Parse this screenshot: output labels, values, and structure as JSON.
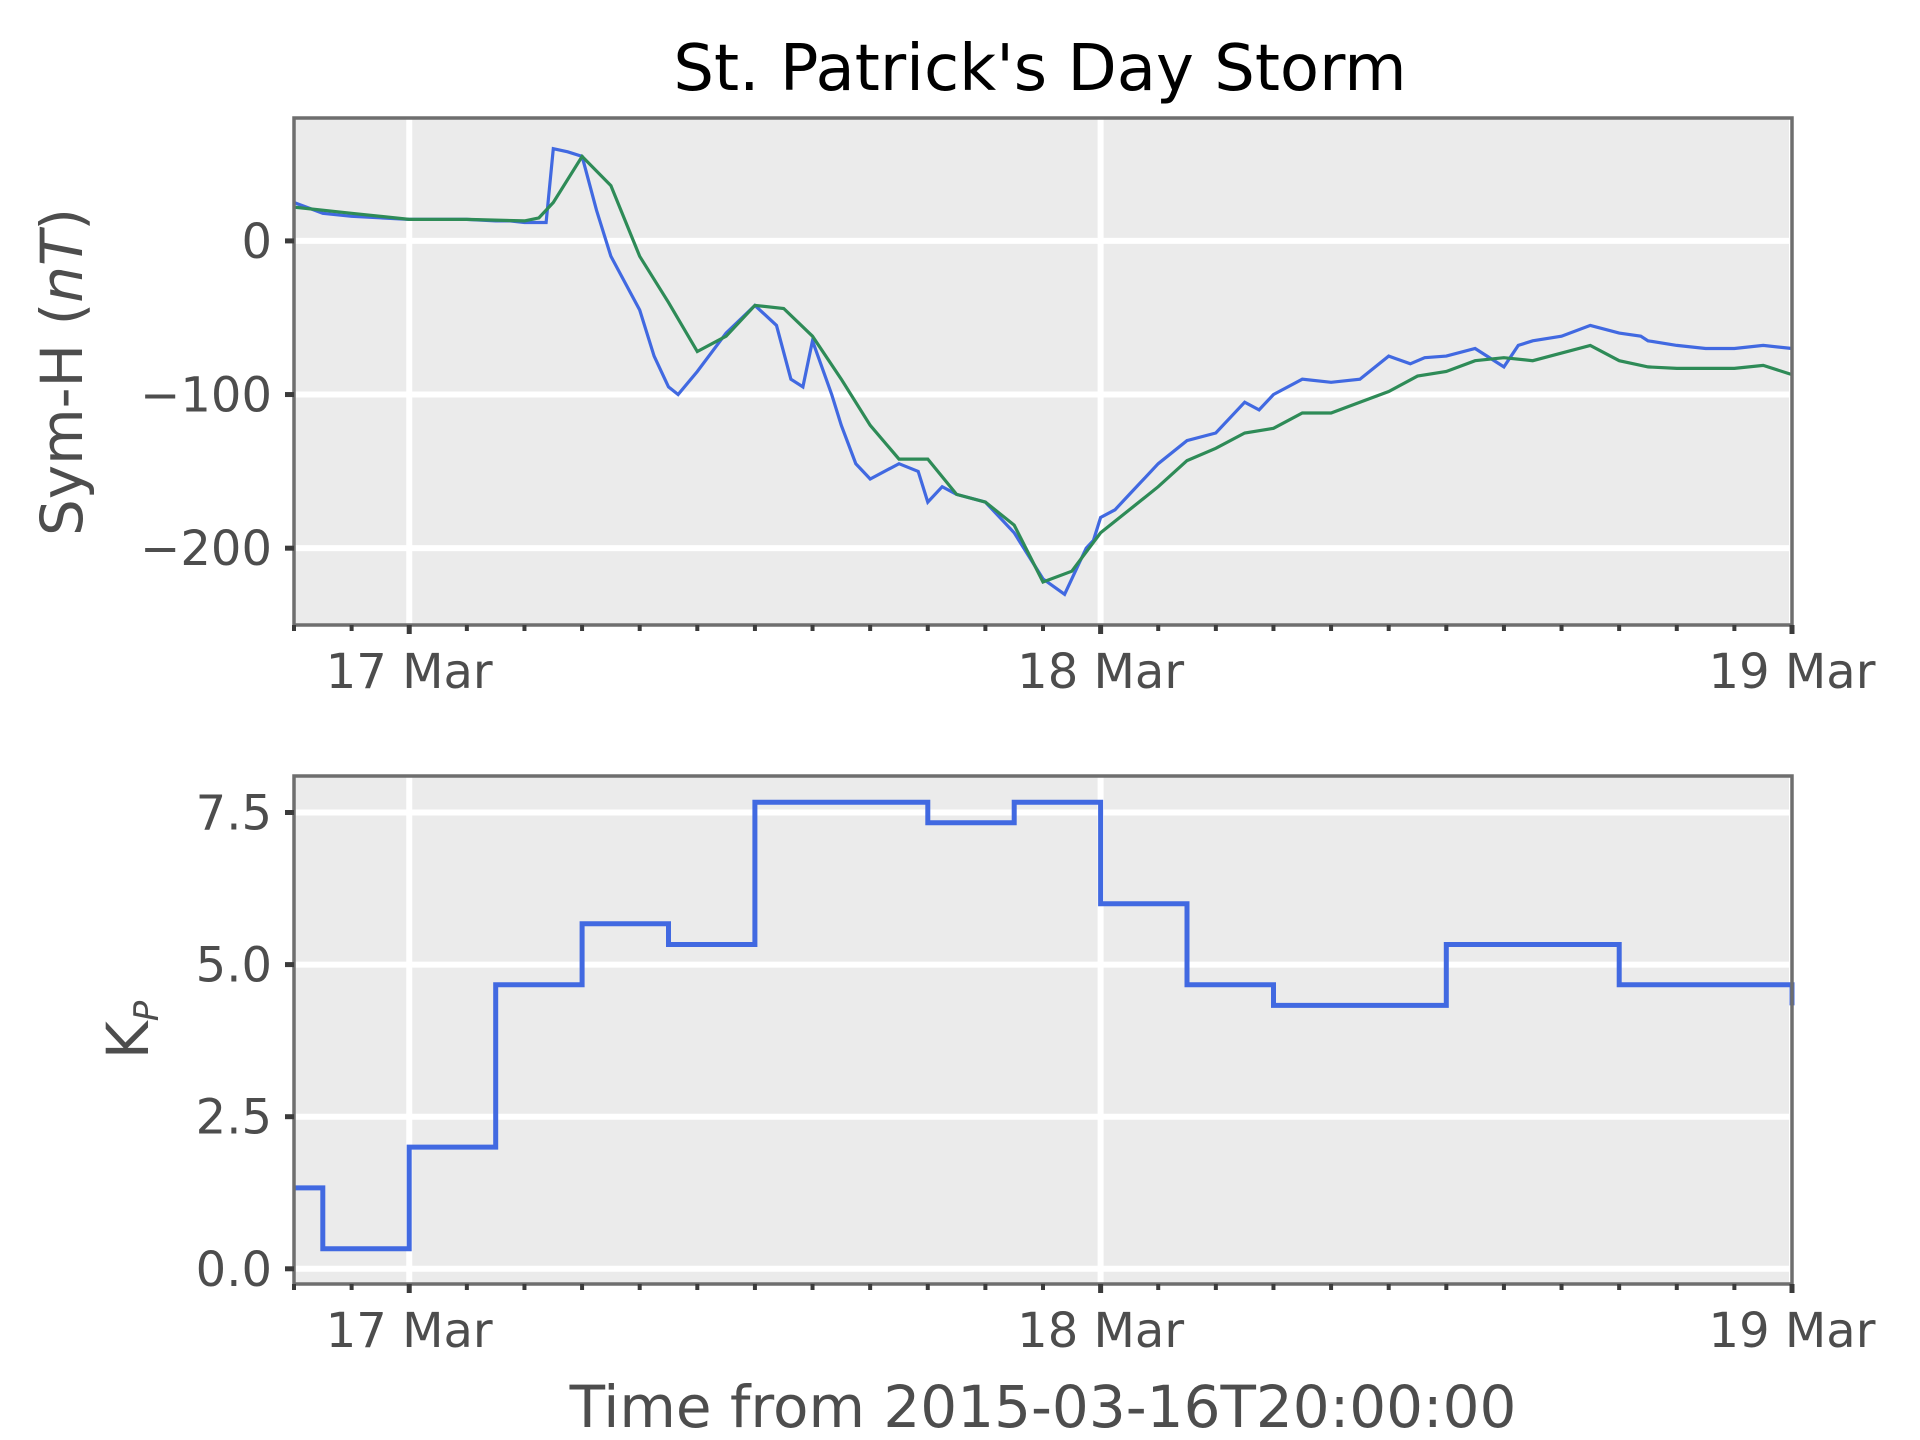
{
  "title": "St. Patrick's Day Storm",
  "xlabel": "Time from 2015-03-16T20:00:00",
  "colors": {
    "background": "#ebebeb",
    "symh": "#4169e1",
    "symh_smooth": "#2e8b57",
    "kp": "#4169e1"
  },
  "chart_data": [
    {
      "type": "line",
      "ylabel": "Sym-H (nT)",
      "ylabel_main": "Sym-H (",
      "ylabel_italic": "nT",
      "ylabel_close": ")",
      "xlim": [
        "2015-03-16T20:00",
        "2015-03-19T00:00"
      ],
      "ylim": [
        -250,
        80
      ],
      "yticks": [
        0,
        -100,
        -200
      ],
      "ytick_labels": [
        "0",
        "−100",
        "−200"
      ],
      "xticks": [
        "2015-03-17T00:00",
        "2015-03-18T00:00",
        "2015-03-19T00:00"
      ],
      "xtick_labels": [
        "17 Mar",
        "18 Mar",
        "19 Mar"
      ],
      "grid": true,
      "series": [
        {
          "x": [
            "2015-03-16T20:00",
            "2015-03-16T21:00",
            "2015-03-16T22:00",
            "2015-03-17T00:00",
            "2015-03-17T01:00",
            "2015-03-17T02:00",
            "2015-03-17T03:00",
            "2015-03-17T03:30",
            "2015-03-17T04:00",
            "2015-03-17T04:45",
            "2015-03-17T05:00",
            "2015-03-17T05:30",
            "2015-03-17T06:00",
            "2015-03-17T06:30",
            "2015-03-17T07:00",
            "2015-03-17T08:00",
            "2015-03-17T08:30",
            "2015-03-17T09:00",
            "2015-03-17T09:20",
            "2015-03-17T10:00",
            "2015-03-17T11:00",
            "2015-03-17T12:00",
            "2015-03-17T12:45",
            "2015-03-17T13:15",
            "2015-03-17T13:40",
            "2015-03-17T14:00",
            "2015-03-17T14:40",
            "2015-03-17T15:00",
            "2015-03-17T15:30",
            "2015-03-17T16:00",
            "2015-03-17T17:00",
            "2015-03-17T17:40",
            "2015-03-17T18:00",
            "2015-03-17T18:30",
            "2015-03-17T19:00",
            "2015-03-17T20:00",
            "2015-03-17T21:00",
            "2015-03-17T22:00",
            "2015-03-17T22:45",
            "2015-03-17T23:15",
            "2015-03-17T23:30",
            "2015-03-17T23:45",
            "2015-03-18T00:00",
            "2015-03-18T00:30",
            "2015-03-18T01:00",
            "2015-03-18T02:00",
            "2015-03-18T03:00",
            "2015-03-18T04:00",
            "2015-03-18T05:00",
            "2015-03-18T05:30",
            "2015-03-18T06:00",
            "2015-03-18T07:00",
            "2015-03-18T08:00",
            "2015-03-18T09:00",
            "2015-03-18T10:00",
            "2015-03-18T10:45",
            "2015-03-18T11:15",
            "2015-03-18T12:00",
            "2015-03-18T13:00",
            "2015-03-18T14:00",
            "2015-03-18T14:30",
            "2015-03-18T15:00",
            "2015-03-18T16:00",
            "2015-03-18T17:00",
            "2015-03-18T18:00",
            "2015-03-18T18:45",
            "2015-03-18T19:00",
            "2015-03-18T20:00",
            "2015-03-18T21:00",
            "2015-03-18T22:00",
            "2015-03-18T23:00",
            "2015-03-19T00:00"
          ],
          "y": [
            25,
            18,
            16,
            14,
            14,
            14,
            13,
            13,
            12,
            12,
            60,
            58,
            55,
            20,
            -10,
            -45,
            -75,
            -95,
            -100,
            -85,
            -60,
            -42,
            -55,
            -90,
            -95,
            -65,
            -100,
            -120,
            -145,
            -155,
            -145,
            -150,
            -170,
            -160,
            -165,
            -170,
            -190,
            -220,
            -230,
            -210,
            -200,
            -195,
            -180,
            -175,
            -165,
            -145,
            -130,
            -125,
            -105,
            -110,
            -100,
            -90,
            -92,
            -90,
            -75,
            -80,
            -76,
            -75,
            -70,
            -82,
            -68,
            -65,
            -62,
            -55,
            -60,
            -62,
            -65,
            -68,
            -70,
            -70,
            -68,
            -70
          ]
        },
        {
          "x": [
            "2015-03-16T20:00",
            "2015-03-16T22:00",
            "2015-03-17T00:00",
            "2015-03-17T02:00",
            "2015-03-17T04:00",
            "2015-03-17T04:30",
            "2015-03-17T05:00",
            "2015-03-17T06:00",
            "2015-03-17T07:00",
            "2015-03-17T08:00",
            "2015-03-17T09:00",
            "2015-03-17T10:00",
            "2015-03-17T11:00",
            "2015-03-17T12:00",
            "2015-03-17T13:00",
            "2015-03-17T14:00",
            "2015-03-17T15:00",
            "2015-03-17T16:00",
            "2015-03-17T17:00",
            "2015-03-17T18:00",
            "2015-03-17T19:00",
            "2015-03-17T20:00",
            "2015-03-17T21:00",
            "2015-03-17T22:00",
            "2015-03-17T23:00",
            "2015-03-18T00:00",
            "2015-03-18T01:00",
            "2015-03-18T02:00",
            "2015-03-18T03:00",
            "2015-03-18T04:00",
            "2015-03-18T05:00",
            "2015-03-18T06:00",
            "2015-03-18T07:00",
            "2015-03-18T08:00",
            "2015-03-18T09:00",
            "2015-03-18T10:00",
            "2015-03-18T11:00",
            "2015-03-18T12:00",
            "2015-03-18T13:00",
            "2015-03-18T14:00",
            "2015-03-18T15:00",
            "2015-03-18T16:00",
            "2015-03-18T17:00",
            "2015-03-18T18:00",
            "2015-03-18T19:00",
            "2015-03-18T20:00",
            "2015-03-18T21:00",
            "2015-03-18T22:00",
            "2015-03-18T23:00",
            "2015-03-19T00:00"
          ],
          "y": [
            22,
            18,
            14,
            14,
            13,
            15,
            25,
            55,
            36,
            -10,
            -40,
            -72,
            -62,
            -42,
            -44,
            -62,
            -90,
            -120,
            -142,
            -142,
            -165,
            -170,
            -185,
            -222,
            -215,
            -190,
            -175,
            -160,
            -143,
            -135,
            -125,
            -122,
            -112,
            -112,
            -105,
            -98,
            -88,
            -85,
            -78,
            -76,
            -78,
            -73,
            -68,
            -78,
            -82,
            -83,
            -83,
            -83,
            -81,
            -87
          ]
        }
      ]
    },
    {
      "type": "line",
      "ylabel": "K_P",
      "ylabel_main": "K",
      "ylabel_sub": "P",
      "xlim": [
        "2015-03-16T20:00",
        "2015-03-19T00:00"
      ],
      "ylim": [
        -0.25,
        8.1
      ],
      "yticks": [
        0,
        2.5,
        5,
        7.5
      ],
      "ytick_labels": [
        "0.0",
        "2.5",
        "5.0",
        "7.5"
      ],
      "xticks": [
        "2015-03-17T00:00",
        "2015-03-18T00:00",
        "2015-03-19T00:00"
      ],
      "xtick_labels": [
        "17 Mar",
        "18 Mar",
        "19 Mar"
      ],
      "grid": true,
      "series": [
        {
          "step": "post",
          "x": [
            "2015-03-16T20:00",
            "2015-03-16T21:00",
            "2015-03-17T00:00",
            "2015-03-17T03:00",
            "2015-03-17T06:00",
            "2015-03-17T09:00",
            "2015-03-17T12:00",
            "2015-03-17T15:00",
            "2015-03-17T18:00",
            "2015-03-17T21:00",
            "2015-03-18T00:00",
            "2015-03-18T03:00",
            "2015-03-18T06:00",
            "2015-03-18T09:00",
            "2015-03-18T12:00",
            "2015-03-18T15:00",
            "2015-03-18T18:00",
            "2015-03-18T21:00",
            "2015-03-19T00:00"
          ],
          "y": [
            1.33,
            0.33,
            2.0,
            4.67,
            5.67,
            5.33,
            7.67,
            7.67,
            7.33,
            7.67,
            6.0,
            4.67,
            4.33,
            4.33,
            5.33,
            5.33,
            4.67,
            4.67,
            4.33
          ]
        }
      ]
    }
  ]
}
